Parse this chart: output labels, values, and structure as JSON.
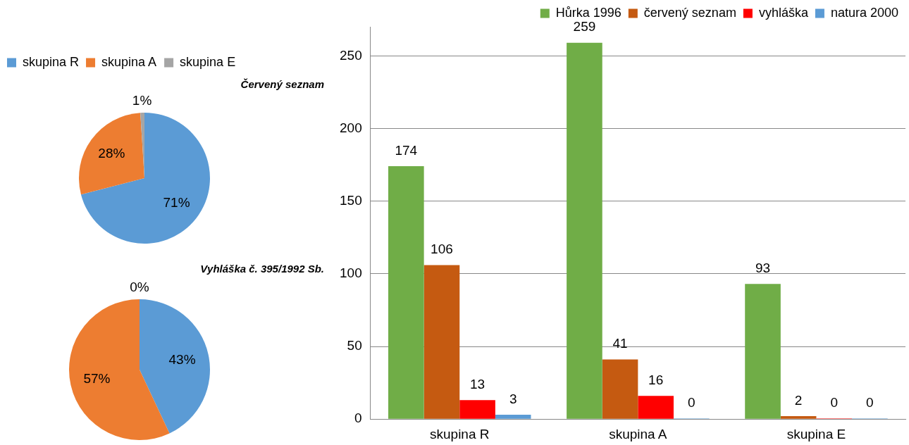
{
  "chart_data": [
    {
      "type": "pie",
      "title": "Červený seznam",
      "categories": [
        "skupina R",
        "skupina A",
        "skupina E"
      ],
      "values": [
        71,
        28,
        1
      ],
      "value_labels": [
        "71%",
        "28%",
        "1%"
      ],
      "colors": [
        "#5b9bd5",
        "#ed7d31",
        "#a5a5a5"
      ],
      "legend": "top"
    },
    {
      "type": "pie",
      "title": "Vyhláška č. 395/1992 Sb.",
      "categories": [
        null,
        null,
        null
      ],
      "values": [
        43,
        57,
        0
      ],
      "value_labels": [
        "43%",
        "57%",
        "0%"
      ],
      "colors": [
        "#5b9bd5",
        "#ed7d31",
        "#a5a5a5"
      ]
    },
    {
      "type": "bar",
      "categories": [
        "skupina R",
        "skupina A",
        "skupina E"
      ],
      "series": [
        {
          "name": "Hůrka 1996",
          "color": "#70ad47",
          "values": [
            174,
            259,
            93
          ]
        },
        {
          "name": "červený seznam",
          "color": "#c55a11",
          "values": [
            106,
            41,
            2
          ]
        },
        {
          "name": "vyhláška",
          "color": "#ff0000",
          "values": [
            13,
            16,
            0
          ]
        },
        {
          "name": "natura 2000",
          "color": "#5b9bd5",
          "values": [
            3,
            0,
            0
          ]
        }
      ],
      "ylim": [
        0,
        270
      ],
      "yticks": [
        0,
        50,
        100,
        150,
        200,
        250
      ],
      "grid": "y",
      "legend": "top right",
      "data_labels": true
    }
  ]
}
